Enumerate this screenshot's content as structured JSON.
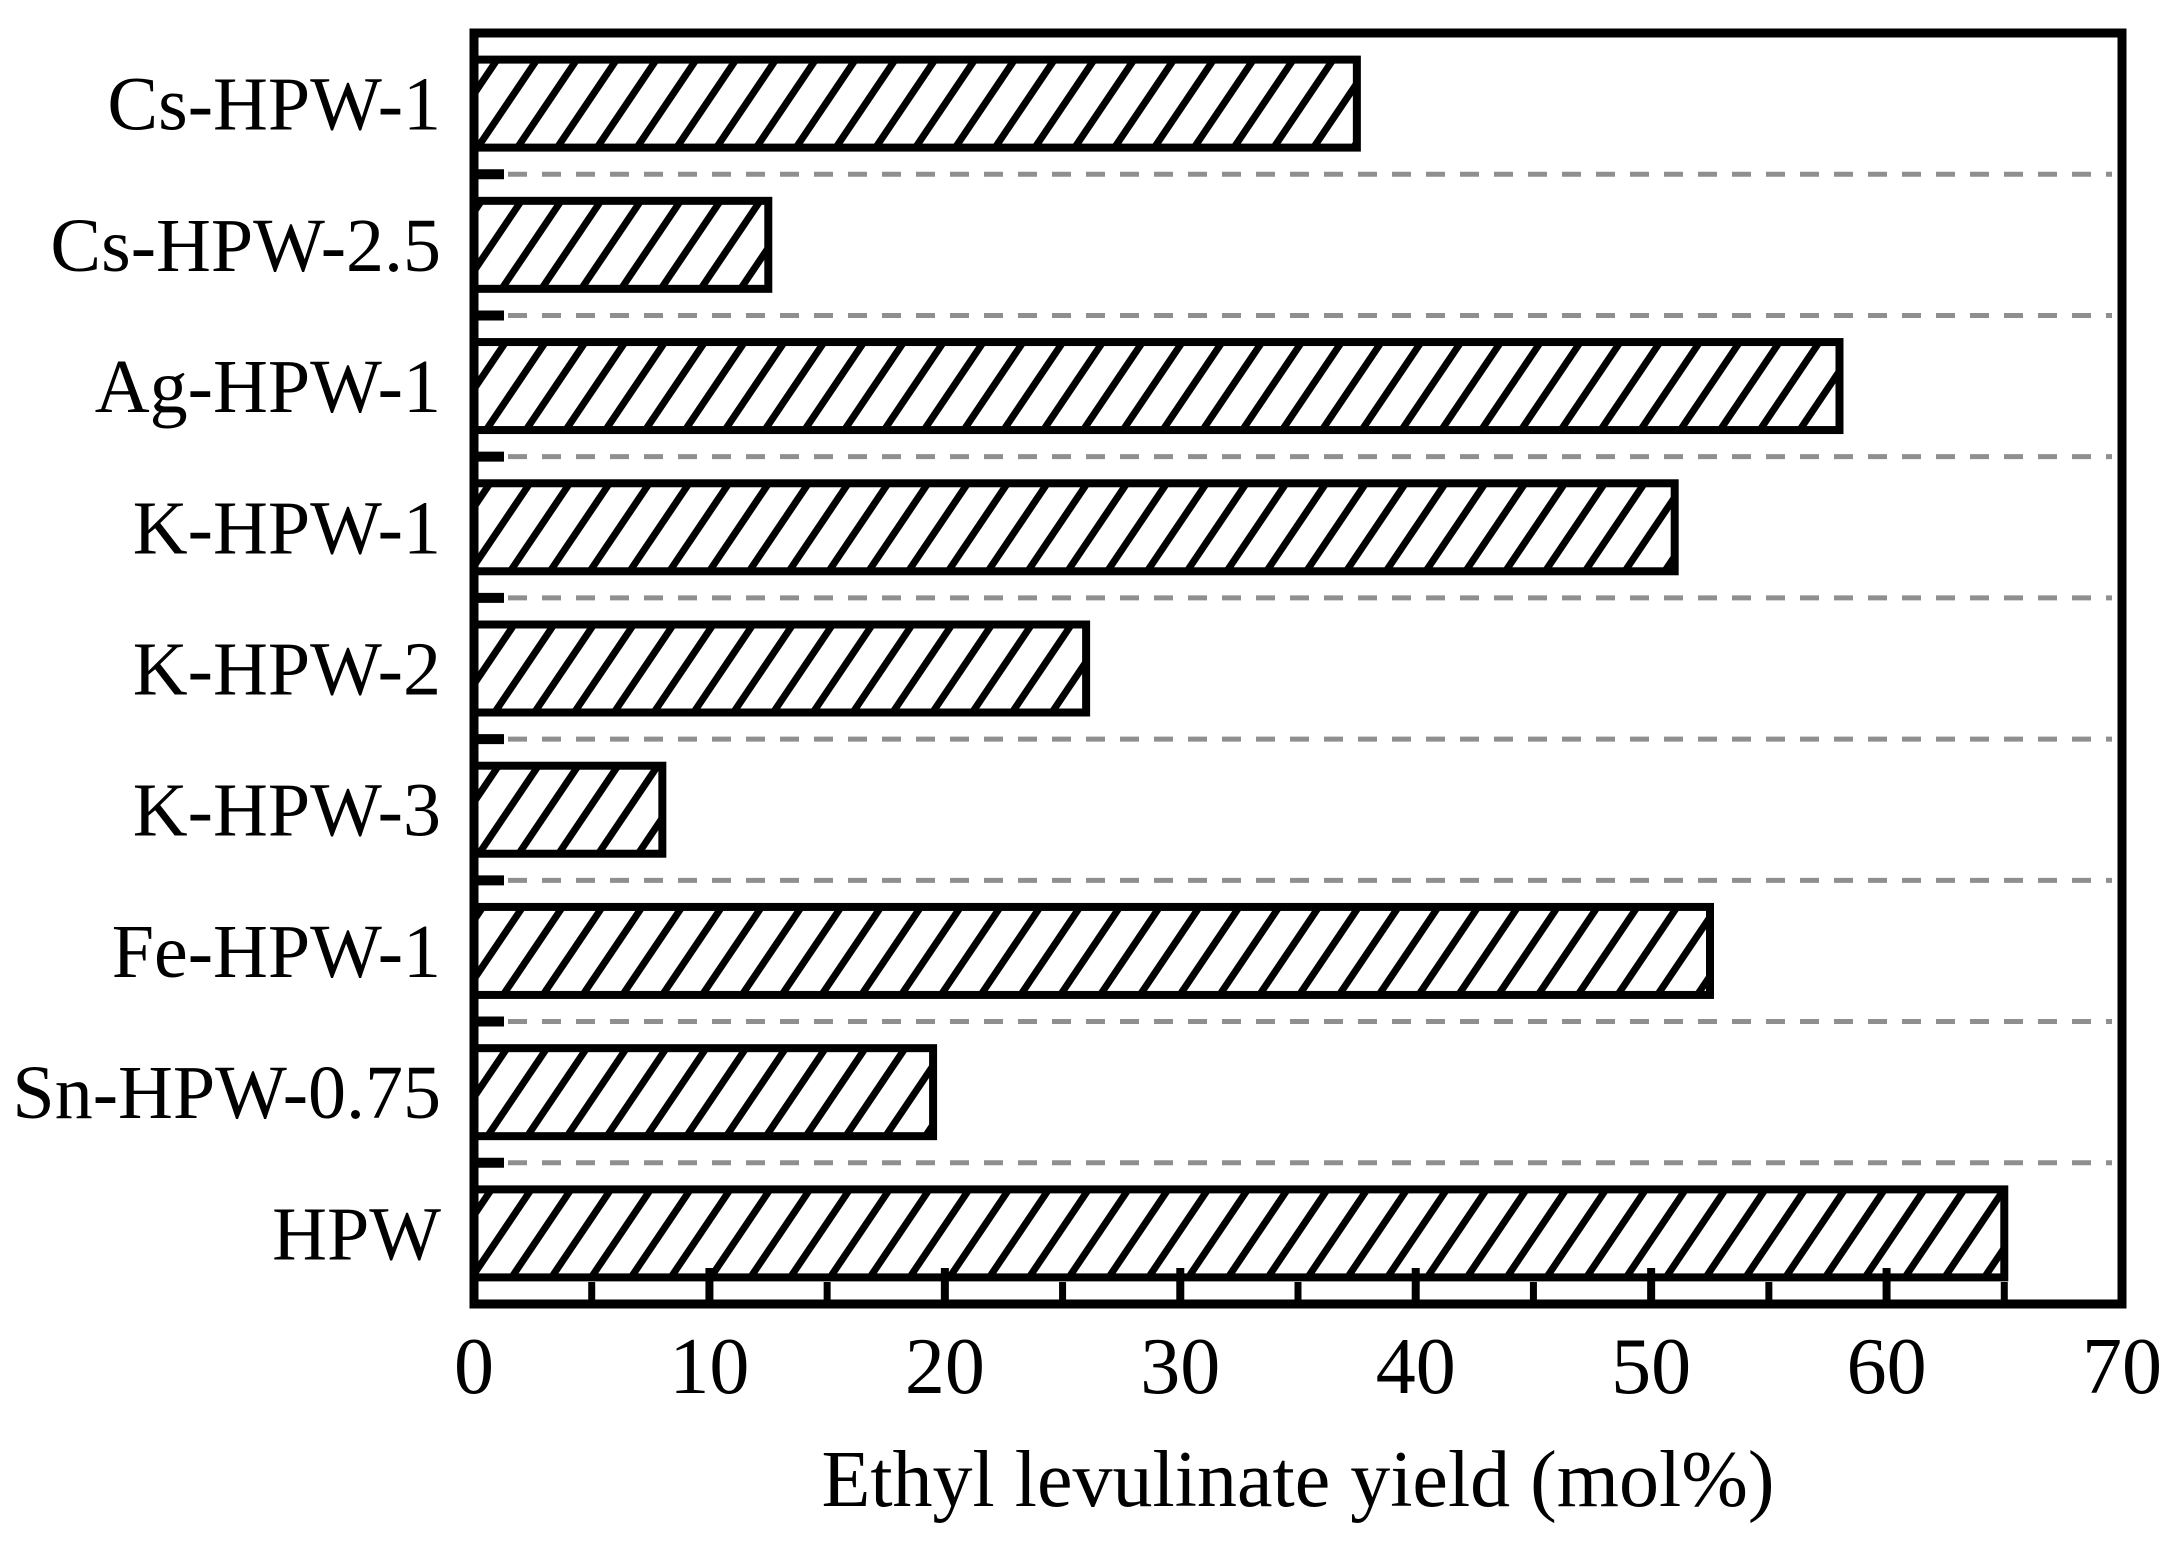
{
  "figure": {
    "background": "#ffffff"
  },
  "chart_data": {
    "type": "bar",
    "orientation": "horizontal",
    "title": "",
    "xlabel": "Ethyl levulinate yield (mol%)",
    "ylabel": "",
    "categories": [
      "Cs-HPW-1",
      "Cs-HPW-2.5",
      "Ag-HPW-1",
      "K-HPW-1",
      "K-HPW-2",
      "K-HPW-3",
      "Fe-HPW-1",
      "Sn-HPW-0.75",
      "HPW"
    ],
    "values": [
      37.5,
      12.5,
      58,
      51,
      26,
      8,
      52.5,
      19.5,
      65
    ],
    "xlim": [
      0,
      70
    ],
    "x_major_ticks": [
      0,
      10,
      20,
      30,
      40,
      50,
      60,
      70
    ],
    "x_minor_ticks": [
      5,
      15,
      25,
      35,
      45,
      55,
      65
    ],
    "grid": "dashed horizontal separator lines between category bands",
    "legend": "none",
    "bar_style": "white fill with black diagonal forward-slash hatching and black outline",
    "colors": {
      "bar_outline": "#000000",
      "hatch_line": "#000000",
      "bar_fill_background": "#ffffff",
      "gridline": "#8f8f8f",
      "axis": "#000000",
      "text": "#000000",
      "background": "#ffffff"
    }
  }
}
